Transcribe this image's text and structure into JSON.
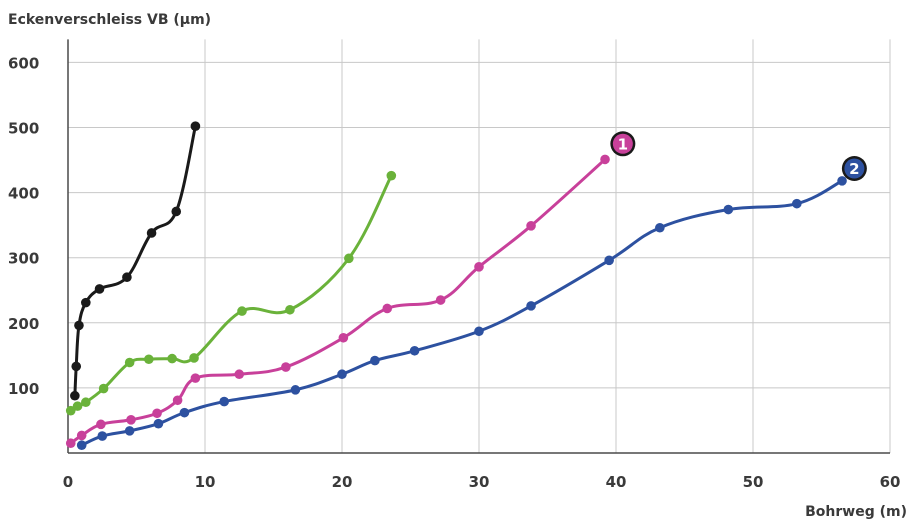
{
  "chart_data": {
    "type": "line",
    "ylabel": "Eckenverschleiss VB (µm)",
    "xlabel": "Bohrweg (m)",
    "xlim": [
      0,
      60
    ],
    "ylim": [
      0,
      620
    ],
    "x_ticks": [
      0,
      10,
      20,
      30,
      40,
      50,
      60
    ],
    "y_ticks": [
      100,
      200,
      300,
      400,
      500,
      600
    ],
    "grid": true,
    "series": [
      {
        "color": "#1a1a1a",
        "points": [
          [
            0.5,
            88
          ],
          [
            0.6,
            133
          ],
          [
            0.8,
            196
          ],
          [
            1.3,
            231
          ],
          [
            2.3,
            252
          ],
          [
            4.3,
            270
          ],
          [
            6.1,
            338
          ],
          [
            7.9,
            371
          ],
          [
            9.3,
            502
          ]
        ]
      },
      {
        "color": "#6ab23a",
        "points": [
          [
            0.2,
            65
          ],
          [
            0.7,
            72
          ],
          [
            1.3,
            78
          ],
          [
            2.6,
            99
          ],
          [
            4.5,
            139
          ],
          [
            5.9,
            144
          ],
          [
            7.6,
            145
          ],
          [
            9.2,
            146
          ],
          [
            12.7,
            218
          ],
          [
            16.2,
            220
          ],
          [
            20.5,
            299
          ],
          [
            23.6,
            426
          ]
        ]
      },
      {
        "color": "#c8409a",
        "points": [
          [
            0.2,
            15
          ],
          [
            1.0,
            27
          ],
          [
            2.4,
            44
          ],
          [
            4.6,
            51
          ],
          [
            6.5,
            61
          ],
          [
            8.0,
            81
          ],
          [
            9.3,
            115
          ],
          [
            12.5,
            121
          ],
          [
            15.9,
            132
          ],
          [
            20.1,
            177
          ],
          [
            23.3,
            222
          ],
          [
            27.2,
            235
          ],
          [
            30.0,
            286
          ],
          [
            33.8,
            349
          ],
          [
            39.2,
            451
          ]
        ]
      },
      {
        "color": "#2d51a0",
        "points": [
          [
            1.0,
            12
          ],
          [
            2.5,
            26
          ],
          [
            4.5,
            34
          ],
          [
            6.6,
            45
          ],
          [
            8.5,
            62
          ],
          [
            11.4,
            79
          ],
          [
            16.6,
            97
          ],
          [
            20.0,
            121
          ],
          [
            22.4,
            142
          ],
          [
            25.3,
            157
          ],
          [
            30.0,
            187
          ],
          [
            33.8,
            226
          ],
          [
            39.5,
            296
          ],
          [
            43.2,
            346
          ],
          [
            48.2,
            374
          ],
          [
            53.2,
            383
          ],
          [
            56.5,
            418
          ]
        ]
      }
    ],
    "annotations": [
      {
        "text": "1",
        "x": 40.5,
        "y": 475,
        "color": "#c8409a"
      },
      {
        "text": "2",
        "x": 57.4,
        "y": 437,
        "color": "#2d51a0"
      }
    ]
  }
}
